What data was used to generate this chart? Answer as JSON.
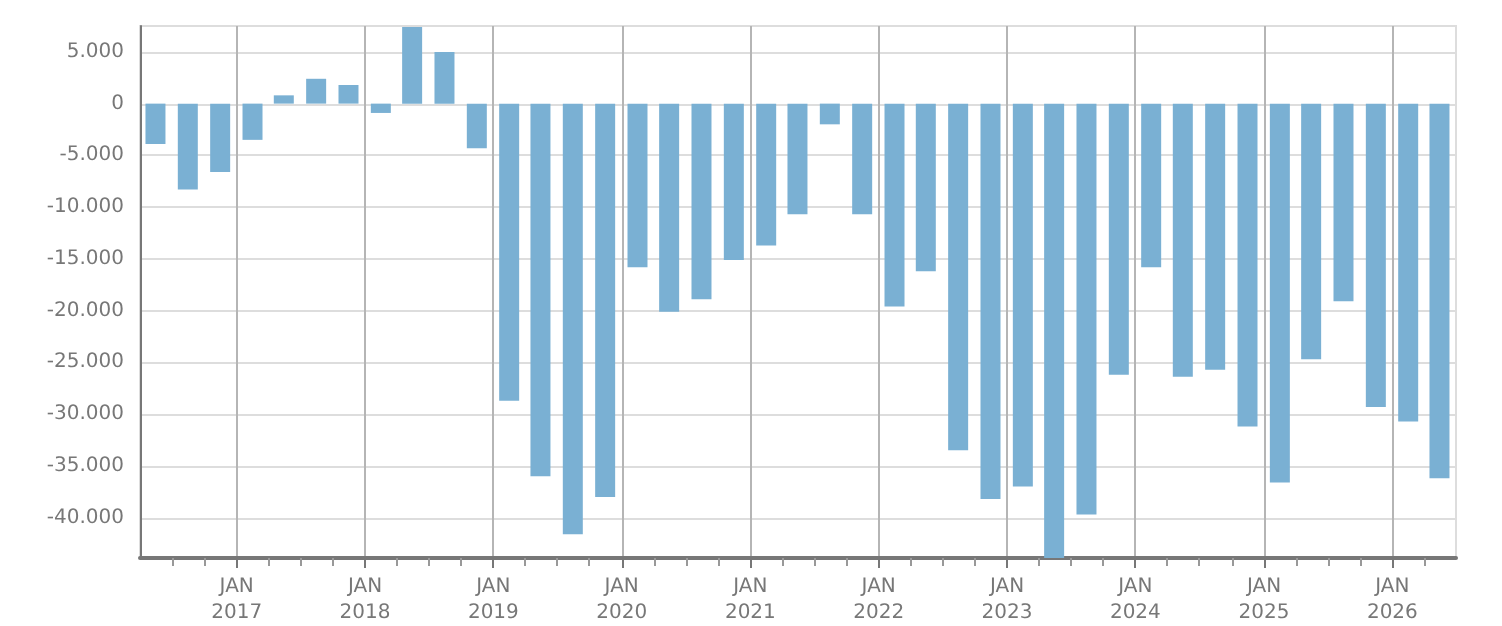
{
  "chart_data": {
    "type": "bar",
    "color": "#7ab0d3",
    "x": [
      "2016-05-15",
      "2016-08-15",
      "2016-11-15",
      "2017-02-15",
      "2017-05-15",
      "2017-08-15",
      "2017-11-15",
      "2018-02-15",
      "2018-05-15",
      "2018-08-15",
      "2018-11-15",
      "2019-02-15",
      "2019-05-15",
      "2019-08-15",
      "2019-11-15",
      "2020-02-15",
      "2020-05-15",
      "2020-08-15",
      "2020-11-15",
      "2021-02-15",
      "2021-05-15",
      "2021-08-15",
      "2021-11-15",
      "2022-02-15",
      "2022-05-15",
      "2022-08-15",
      "2022-11-15",
      "2023-02-15",
      "2023-05-15",
      "2023-08-15",
      "2023-11-15",
      "2024-02-15",
      "2024-05-15",
      "2024-08-15",
      "2024-11-15",
      "2025-02-15",
      "2025-05-15",
      "2025-08-15",
      "2025-11-15",
      "2026-02-15",
      "2026-05-15"
    ],
    "values": [
      -3900,
      -8300,
      -6600,
      -3500,
      800,
      2400,
      1800,
      -900,
      7400,
      5000,
      -4300,
      -28700,
      -36000,
      -41600,
      -38000,
      -15800,
      -20100,
      -18900,
      -15100,
      -13700,
      -10700,
      -2000,
      -10700,
      -19600,
      -16200,
      -33500,
      -38200,
      -37000,
      -43900,
      -39700,
      -26200,
      -15800,
      -26400,
      -25700,
      -31200,
      -36600,
      -24700,
      -19100,
      -29300,
      -30700,
      -36200
    ],
    "xlim": [
      "2016-04-01",
      "2026-07-01"
    ],
    "xticks": [
      {
        "value": "2016-07-01",
        "label": null
      },
      {
        "value": "2016-10-01",
        "label": null
      },
      {
        "value": "2017-01-01",
        "label": "JAN\n2017"
      },
      {
        "value": "2017-04-01",
        "label": null
      },
      {
        "value": "2017-07-01",
        "label": null
      },
      {
        "value": "2017-10-01",
        "label": null
      },
      {
        "value": "2018-01-01",
        "label": "JAN\n2018"
      },
      {
        "value": "2018-04-01",
        "label": null
      },
      {
        "value": "2018-07-01",
        "label": null
      },
      {
        "value": "2018-10-01",
        "label": null
      },
      {
        "value": "2019-01-01",
        "label": "JAN\n2019"
      },
      {
        "value": "2019-04-01",
        "label": null
      },
      {
        "value": "2019-07-01",
        "label": null
      },
      {
        "value": "2019-10-01",
        "label": null
      },
      {
        "value": "2020-01-01",
        "label": "JAN\n2020"
      },
      {
        "value": "2020-04-01",
        "label": null
      },
      {
        "value": "2020-07-01",
        "label": null
      },
      {
        "value": "2020-10-01",
        "label": null
      },
      {
        "value": "2021-01-01",
        "label": "JAN\n2021"
      },
      {
        "value": "2021-04-01",
        "label": null
      },
      {
        "value": "2021-07-01",
        "label": null
      },
      {
        "value": "2021-10-01",
        "label": null
      },
      {
        "value": "2022-01-01",
        "label": "JAN\n2022"
      },
      {
        "value": "2022-04-01",
        "label": null
      },
      {
        "value": "2022-07-01",
        "label": null
      },
      {
        "value": "2022-10-01",
        "label": null
      },
      {
        "value": "2023-01-01",
        "label": "JAN\n2023"
      },
      {
        "value": "2023-04-01",
        "label": null
      },
      {
        "value": "2023-07-01",
        "label": null
      },
      {
        "value": "2023-10-01",
        "label": null
      },
      {
        "value": "2024-01-01",
        "label": "JAN\n2024"
      },
      {
        "value": "2024-04-01",
        "label": null
      },
      {
        "value": "2024-07-01",
        "label": null
      },
      {
        "value": "2024-10-01",
        "label": null
      },
      {
        "value": "2025-01-01",
        "label": "JAN\n2025"
      },
      {
        "value": "2025-04-01",
        "label": null
      },
      {
        "value": "2025-07-01",
        "label": null
      },
      {
        "value": "2025-10-01",
        "label": null
      },
      {
        "value": "2026-01-01",
        "label": "JAN\n2026"
      },
      {
        "value": "2026-04-01",
        "label": null
      }
    ],
    "ylim": [
      -43900,
      7500
    ],
    "yticks": [
      {
        "value": -40000,
        "label": "-40.000"
      },
      {
        "value": -35000,
        "label": "-35.000"
      },
      {
        "value": -30000,
        "label": "-30.000"
      },
      {
        "value": -25000,
        "label": "-25.000"
      },
      {
        "value": -20000,
        "label": "-20.000"
      },
      {
        "value": -15000,
        "label": "-15.000"
      },
      {
        "value": -10000,
        "label": "-10.000"
      },
      {
        "value": -5000,
        "label": "-5.000"
      },
      0,
      {
        "value": 5000,
        "label": "5.000"
      }
    ],
    "grid": true
  }
}
